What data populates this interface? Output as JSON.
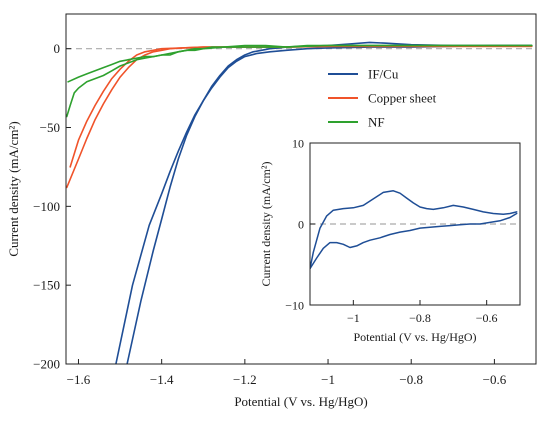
{
  "chart_data": [
    {
      "type": "line",
      "xlabel": "Potential (V vs. Hg/HgO)",
      "ylabel": "Current density (mA/cm²)",
      "xlim": [
        -1.63,
        -0.5
      ],
      "ylim": [
        -200,
        22
      ],
      "xticks": [
        -1.6,
        -1.4,
        -1.2,
        -1,
        -0.8,
        -0.6
      ],
      "xtick_labels": [
        "−1.6",
        "−1.4",
        "−1.2",
        "−1",
        "−0.8",
        "−0.6"
      ],
      "yticks": [
        0,
        -50,
        -100,
        -150,
        -200
      ],
      "ytick_labels": [
        "0",
        "−50",
        "−100",
        "−150",
        "−200"
      ],
      "reference_line": {
        "y": 0,
        "style": "dashed",
        "color": "#aaaaaa"
      },
      "legend_position": "top-right",
      "series": [
        {
          "name": "IF/Cu",
          "color": "#1f4e96",
          "segments": [
            {
              "x": [
                -1.483,
                -1.45,
                -1.42,
                -1.4,
                -1.38,
                -1.36,
                -1.34,
                -1.32,
                -1.3,
                -1.28,
                -1.26,
                -1.24,
                -1.22,
                -1.2,
                -1.18,
                -1.16,
                -1.14,
                -1.12,
                -1.1,
                -1.06,
                -1.0,
                -0.95,
                -0.9,
                -0.86,
                -0.8,
                -0.7,
                -0.6,
                -0.51
              ],
              "y": [
                -200,
                -160,
                -128,
                -108,
                -88,
                -70,
                -55,
                -43,
                -33,
                -24,
                -17,
                -11,
                -7,
                -4,
                -2,
                -1,
                0,
                0.5,
                1,
                1.5,
                2,
                3,
                4,
                3.5,
                2.5,
                2,
                2,
                2
              ]
            },
            {
              "x": [
                -1.51,
                -1.47,
                -1.43,
                -1.4,
                -1.38,
                -1.36,
                -1.34,
                -1.32,
                -1.3,
                -1.28,
                -1.26,
                -1.24,
                -1.22,
                -1.2,
                -1.17,
                -1.14,
                -1.1,
                -1.05,
                -1.0,
                -0.9,
                -0.8,
                -0.7,
                -0.6,
                -0.51
              ],
              "y": [
                -200,
                -150,
                -112,
                -92,
                -78,
                -65,
                -53,
                -42,
                -33,
                -25,
                -18,
                -12,
                -8,
                -5,
                -3,
                -2,
                -1,
                0,
                0.5,
                1,
                1,
                1.5,
                2,
                2
              ]
            }
          ]
        },
        {
          "name": "Copper sheet",
          "color": "#f0532a",
          "segments": [
            {
              "x": [
                -1.628,
                -1.6,
                -1.58,
                -1.56,
                -1.54,
                -1.52,
                -1.5,
                -1.48,
                -1.46,
                -1.44,
                -1.42,
                -1.4,
                -1.38,
                -1.35,
                -1.3,
                -1.25,
                -1.2,
                -1.1,
                -1.0,
                -0.9,
                -0.8,
                -0.7,
                -0.6,
                -0.51
              ],
              "y": [
                -88,
                -70,
                -57,
                -45,
                -35,
                -26,
                -18,
                -12,
                -7,
                -4,
                -2,
                -1,
                0,
                0.5,
                1,
                1,
                1,
                1,
                1.5,
                1.5,
                1.5,
                1.5,
                1.5,
                1.5
              ]
            },
            {
              "x": [
                -1.62,
                -1.6,
                -1.58,
                -1.56,
                -1.54,
                -1.52,
                -1.5,
                -1.48,
                -1.46,
                -1.44,
                -1.42,
                -1.4,
                -1.35,
                -1.3,
                -1.2,
                -1.1,
                -1.0,
                -0.9,
                -0.8,
                -0.7,
                -0.6,
                -0.51
              ],
              "y": [
                -75,
                -58,
                -46,
                -36,
                -27,
                -19,
                -13,
                -8,
                -4,
                -2,
                -1,
                0,
                0.5,
                1,
                1,
                1,
                1.5,
                1.5,
                1.5,
                1.5,
                1.5,
                1.5
              ]
            }
          ]
        },
        {
          "name": "NF",
          "color": "#2ea12e",
          "segments": [
            {
              "x": [
                -1.628,
                -1.62,
                -1.61,
                -1.6,
                -1.58,
                -1.56,
                -1.54,
                -1.52,
                -1.5,
                -1.48,
                -1.46,
                -1.44,
                -1.42,
                -1.4,
                -1.38,
                -1.36,
                -1.34,
                -1.32,
                -1.3,
                -1.28,
                -1.25,
                -1.2,
                -1.15,
                -1.1,
                -1.05,
                -1.0,
                -0.9,
                -0.8,
                -0.7,
                -0.6,
                -0.51
              ],
              "y": [
                -43,
                -36,
                -28,
                -25,
                -21,
                -19,
                -17,
                -14,
                -11,
                -9,
                -7,
                -6,
                -5,
                -4,
                -4,
                -2,
                -1,
                0,
                0,
                1,
                1,
                2,
                2,
                1,
                2,
                2,
                2,
                2,
                2,
                2,
                2
              ]
            },
            {
              "x": [
                -1.625,
                -1.6,
                -1.58,
                -1.56,
                -1.54,
                -1.52,
                -1.5,
                -1.48,
                -1.46,
                -1.44,
                -1.42,
                -1.4,
                -1.38,
                -1.36,
                -1.34,
                -1.32,
                -1.3,
                -1.25,
                -1.2,
                -1.1,
                -1.0,
                -0.9,
                -0.8,
                -0.7,
                -0.6,
                -0.51
              ],
              "y": [
                -21,
                -18,
                -16,
                -14,
                -12,
                -10,
                -8,
                -7,
                -6,
                -5,
                -5,
                -4,
                -3,
                -2,
                -1,
                -1,
                0,
                1,
                1,
                1,
                2,
                2,
                2,
                2,
                2,
                2
              ]
            }
          ]
        }
      ]
    },
    {
      "type": "line",
      "xlabel": "Potential (V vs. Hg/HgO)",
      "ylabel": "Current density (mA/cm²)",
      "xlim": [
        -1.13,
        -0.5
      ],
      "ylim": [
        -10,
        10
      ],
      "xticks": [
        -1,
        -0.8,
        -0.6
      ],
      "xtick_labels": [
        "−1",
        "−0.8",
        "−0.6"
      ],
      "yticks": [
        10,
        0,
        -10
      ],
      "ytick_labels": [
        "10",
        "0",
        "−10"
      ],
      "reference_line": {
        "y": 0,
        "style": "dashed",
        "color": "#aaaaaa"
      },
      "series": [
        {
          "color": "#1f4e96",
          "segments": [
            {
              "x": [
                -1.13,
                -1.12,
                -1.1,
                -1.08,
                -1.06,
                -1.03,
                -1.0,
                -0.97,
                -0.94,
                -0.91,
                -0.88,
                -0.86,
                -0.84,
                -0.82,
                -0.8,
                -0.78,
                -0.76,
                -0.73,
                -0.7,
                -0.67,
                -0.64,
                -0.61,
                -0.58,
                -0.55,
                -0.53,
                -0.51
              ],
              "y": [
                -5.5,
                -3.5,
                -0.5,
                1.0,
                1.7,
                1.9,
                2.0,
                2.3,
                3.1,
                3.9,
                4.1,
                3.8,
                3.2,
                2.6,
                2.1,
                1.9,
                1.8,
                2.0,
                2.3,
                2.1,
                1.8,
                1.5,
                1.3,
                1.2,
                1.3,
                1.5
              ]
            },
            {
              "x": [
                -1.13,
                -1.11,
                -1.09,
                -1.07,
                -1.05,
                -1.03,
                -1.01,
                -0.99,
                -0.97,
                -0.95,
                -0.92,
                -0.89,
                -0.86,
                -0.83,
                -0.8,
                -0.77,
                -0.74,
                -0.71,
                -0.68,
                -0.65,
                -0.62,
                -0.59,
                -0.56,
                -0.53,
                -0.51
              ],
              "y": [
                -5.5,
                -4.2,
                -3.0,
                -2.3,
                -2.3,
                -2.5,
                -2.9,
                -2.7,
                -2.3,
                -2.0,
                -1.7,
                -1.3,
                -1.0,
                -0.8,
                -0.5,
                -0.4,
                -0.3,
                -0.2,
                -0.1,
                0,
                0,
                0.2,
                0.4,
                0.8,
                1.3
              ]
            }
          ]
        }
      ]
    }
  ]
}
